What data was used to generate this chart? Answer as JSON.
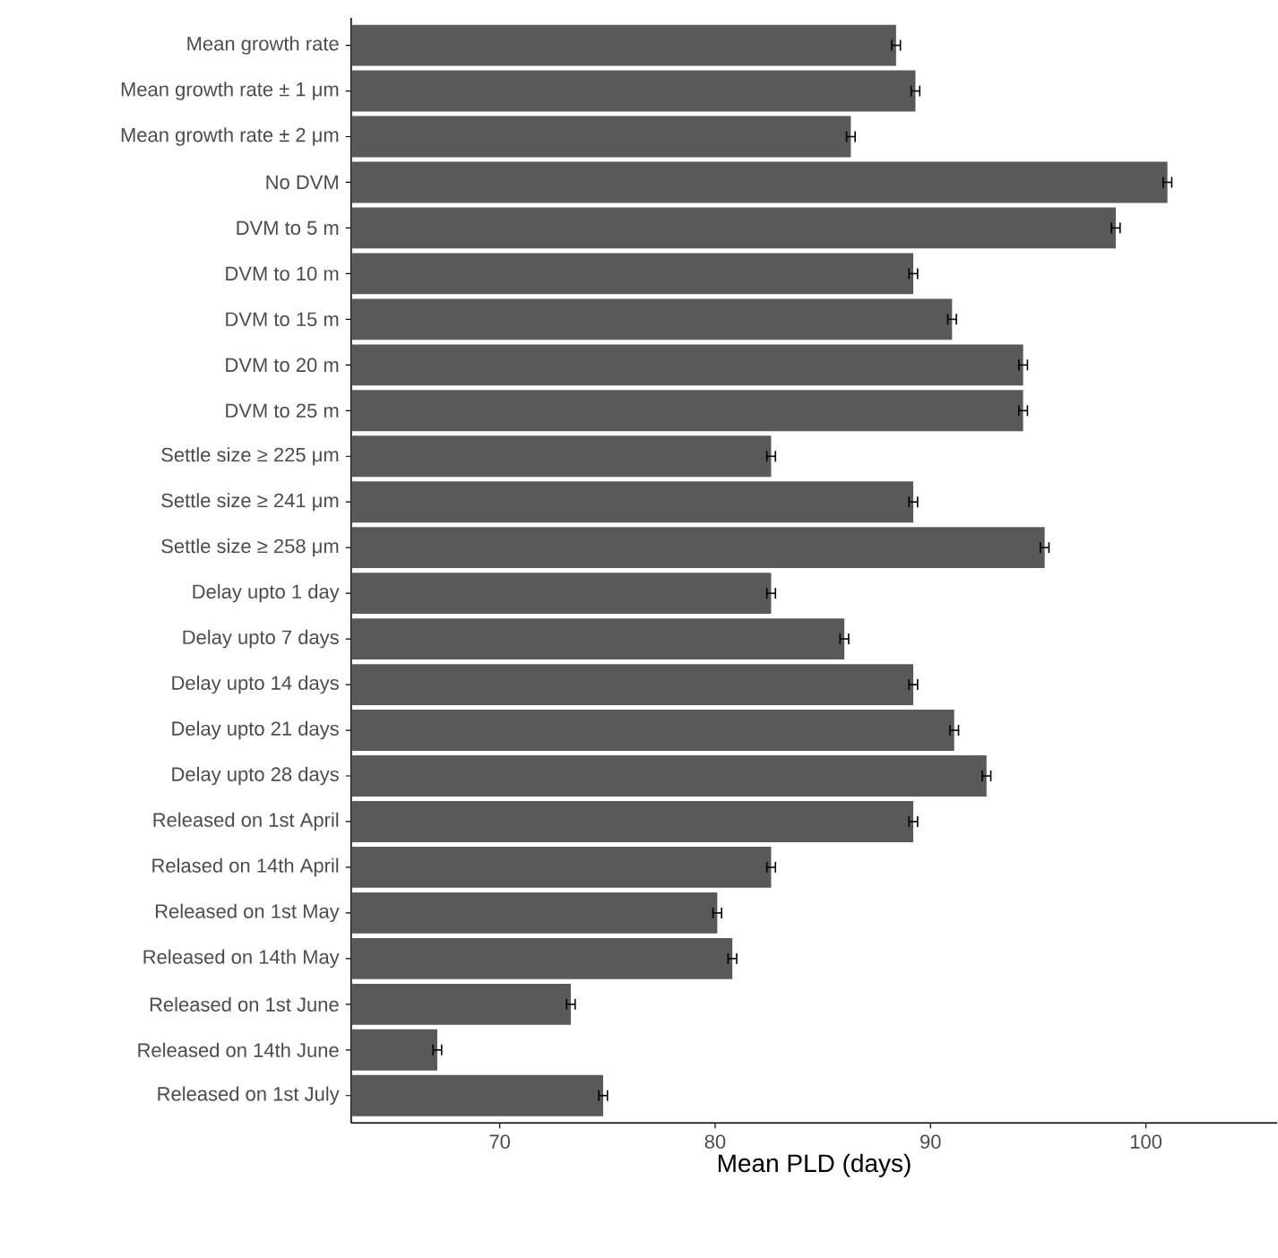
{
  "chart_data": {
    "type": "bar",
    "orientation": "horizontal",
    "xlabel": "Mean PLD (days)",
    "categories": [
      "Mean growth rate",
      "Mean growth rate ± 1 μm",
      "Mean growth rate ± 2 μm",
      "No DVM",
      "DVM to 5 m",
      "DVM to 10 m",
      "DVM to 15 m",
      "DVM to 20 m",
      "DVM to 25 m",
      "Settle size ≥ 225 μm",
      "Settle size ≥ 241 μm",
      "Settle size ≥ 258 μm",
      "Delay upto 1 day",
      "Delay upto 7 days",
      "Delay upto 14 days",
      "Delay upto 21 days",
      "Delay upto 28 days",
      "Released on 1st April",
      "Relased on 14th April",
      "Released on 1st May",
      "Released on 14th May",
      "Released on 1st June",
      "Released on 14th June",
      "Released on 1st July"
    ],
    "values": [
      88.4,
      89.3,
      86.3,
      101.0,
      98.6,
      89.2,
      91.0,
      94.3,
      94.3,
      82.6,
      89.2,
      95.3,
      82.6,
      86.0,
      89.2,
      91.1,
      92.6,
      89.2,
      82.6,
      80.1,
      80.8,
      73.3,
      67.1,
      74.8
    ],
    "errors": [
      0.2,
      0.2,
      0.2,
      0.2,
      0.2,
      0.2,
      0.2,
      0.2,
      0.2,
      0.2,
      0.2,
      0.2,
      0.2,
      0.2,
      0.2,
      0.2,
      0.2,
      0.2,
      0.2,
      0.2,
      0.2,
      0.2,
      0.2,
      0.2
    ],
    "color": "#595959",
    "xlim": [
      63.1,
      106.1
    ],
    "xticks": [
      70,
      80,
      90,
      100
    ]
  }
}
